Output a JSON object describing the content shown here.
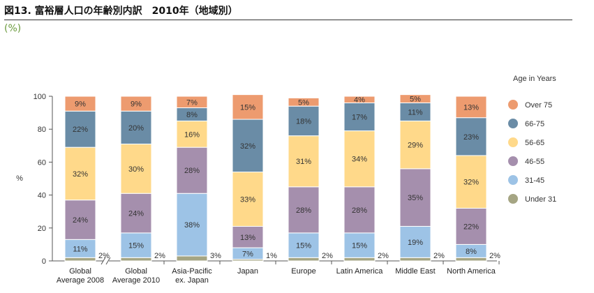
{
  "header": {
    "title": "図13. 富裕層人口の年齢別内訳　2010年（地域別）",
    "unit_note": "(%)"
  },
  "chart_data": {
    "type": "bar",
    "stacked": true,
    "title": "",
    "xlabel": "",
    "ylabel": "%",
    "ylim": [
      0,
      100
    ],
    "yticks": [
      0,
      20,
      40,
      60,
      80,
      100
    ],
    "grid": false,
    "legend_title": "Age in  Years",
    "legend_position": "right",
    "categories": [
      [
        "Global",
        "Average 2008"
      ],
      [
        "Global",
        "Average 2010"
      ],
      [
        "Asia-Pacific",
        "ex. Japan"
      ],
      [
        "Japan"
      ],
      [
        "Europe"
      ],
      [
        "Latin America"
      ],
      [
        "Middle East"
      ],
      [
        "North America"
      ]
    ],
    "series": [
      {
        "name": "Under 31",
        "color": "#a5a583",
        "values": [
          2,
          2,
          3,
          1,
          2,
          2,
          2,
          2
        ]
      },
      {
        "name": "31-45",
        "color": "#9dc3e6",
        "values": [
          11,
          15,
          38,
          7,
          15,
          15,
          19,
          8
        ]
      },
      {
        "name": "46-55",
        "color": "#a58fad",
        "values": [
          24,
          24,
          28,
          13,
          28,
          28,
          35,
          22
        ]
      },
      {
        "name": "56-65",
        "color": "#ffd98a",
        "values": [
          32,
          30,
          16,
          33,
          31,
          34,
          29,
          32
        ]
      },
      {
        "name": "66-75",
        "color": "#6a8ca6",
        "values": [
          22,
          20,
          8,
          32,
          18,
          17,
          11,
          23
        ]
      },
      {
        "name": "Over 75",
        "color": "#ed9b6f",
        "values": [
          9,
          9,
          7,
          15,
          5,
          4,
          5,
          13
        ]
      }
    ],
    "label_color": "#333333"
  }
}
